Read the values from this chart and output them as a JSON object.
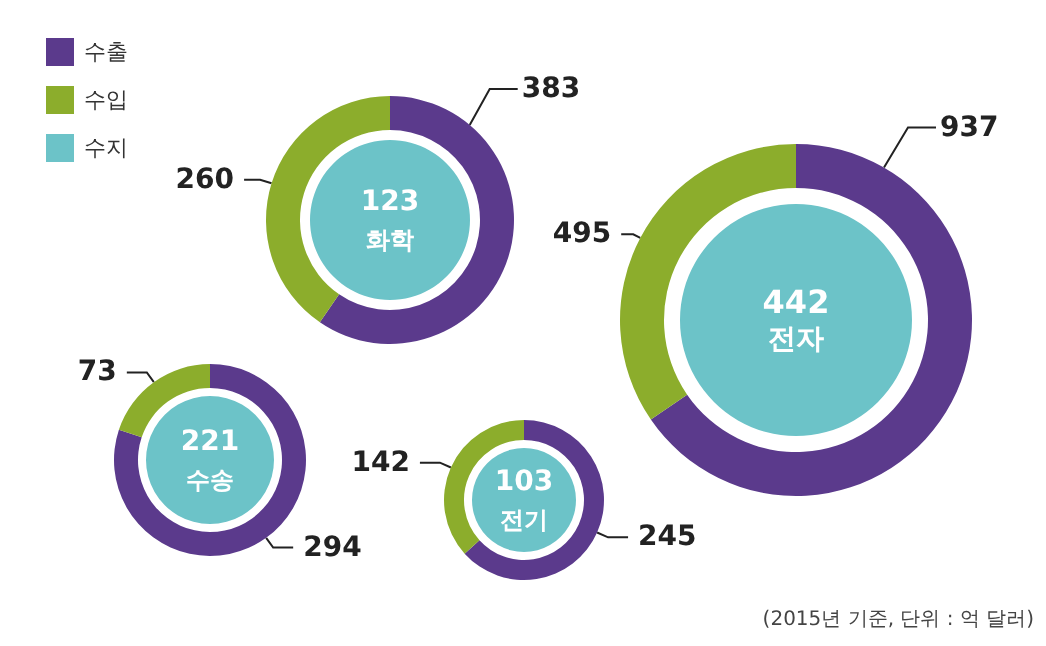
{
  "chart_data": {
    "type": "donut",
    "categories": [
      "수출",
      "수입",
      "수지"
    ],
    "colors": [
      "#5b3a8c",
      "#8cad2c",
      "#6cc3c8"
    ],
    "data_labels": true,
    "legend": "top left",
    "series": [
      {
        "name": "화학",
        "values": [
          383,
          260,
          null
        ]
      },
      {
        "name": "전자",
        "values": [
          937,
          495,
          null
        ]
      },
      {
        "name": "수송",
        "values": [
          294,
          73,
          null
        ]
      },
      {
        "name": "전기",
        "values": [
          245,
          142,
          null
        ]
      }
    ],
    "annotations": [
      "123",
      "442",
      "221",
      "103",
      "(2015년 기준, 단위 : 억 달러)"
    ]
  }
}
